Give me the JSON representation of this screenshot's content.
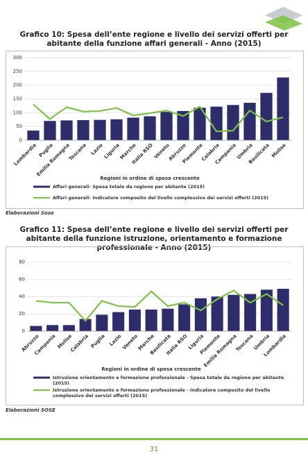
{
  "chart_data": [
    {
      "type": "bar",
      "title": "Grafico 10: Spesa dell’ente regione e livello dei servizi offerti per abitante della funzione affari generali - Anno (2015)",
      "x_label": "Regioni in ordine di spesa crescente",
      "categories": [
        "Lombardia",
        "Puglia",
        "Emilia Romagna",
        "Toscana",
        "Lazio",
        "Liguria",
        "Marche",
        "Italia RSO",
        "Veneto",
        "Abruzzo",
        "Piemonte",
        "Calabria",
        "Campania",
        "Umbria",
        "Basilicata",
        "Molise"
      ],
      "series": [
        {
          "name": "Affari generali- Spesa totale da regione per abitante (2015)",
          "type": "bar",
          "color": "#2e2d6b",
          "values": [
            35,
            70,
            72,
            73,
            74,
            76,
            82,
            87,
            103,
            106,
            118,
            122,
            128,
            136,
            172,
            228
          ]
        },
        {
          "name": "Affari generali- Indicatore composito del livello complessivo dei servizi offerti (2015)",
          "type": "line",
          "color": "#7dc242",
          "values": [
            130,
            77,
            120,
            104,
            106,
            117,
            90,
            98,
            108,
            88,
            122,
            32,
            35,
            108,
            68,
            83
          ]
        }
      ],
      "ylim": [
        0,
        300
      ],
      "yticks": [
        0,
        50,
        100,
        150,
        200,
        250,
        300
      ],
      "grid": true
    },
    {
      "type": "bar",
      "title": "Grafico 11: Spesa dell’ente regione e livello dei servizi offerti per abitante della funzione istruzione, orientamento e formazione professionale - Anno (2015)",
      "x_label": "Regioni in ordine di spesa crescente",
      "categories": [
        "Abruzzo",
        "Campania",
        "Molise",
        "Calabria",
        "Puglia",
        "Lazio",
        "Veneto",
        "Marche",
        "Basilicata",
        "Italia RSO",
        "Liguria",
        "Piemonte",
        "Emilia Romagna",
        "Toscana",
        "Umbria",
        "Lombardia"
      ],
      "series": [
        {
          "name": "Istruzione orientamento e formazione professionale - Spesa totale da regione per abitante (2015)",
          "type": "bar",
          "color": "#2e2d6b",
          "values": [
            6,
            7,
            7,
            14,
            19,
            22,
            25,
            25,
            26,
            31,
            38,
            40,
            42,
            43,
            48,
            49
          ]
        },
        {
          "name": "Istruzione orientamento e formazione professionale - Indicatore composito del livello complessivo dei servizi offerti (2015)",
          "type": "line",
          "color": "#7dc242",
          "values": [
            35,
            33,
            33,
            12,
            35,
            29,
            28,
            46,
            29,
            33,
            24,
            37,
            47,
            33,
            43,
            30
          ]
        }
      ],
      "ylim": [
        0,
        90
      ],
      "yticks": [
        0,
        20,
        40,
        60,
        80
      ],
      "grid": true
    }
  ],
  "sources": [
    "Elaborazioni Sose",
    "Elaborazioni SOSE"
  ],
  "page_number": "31"
}
